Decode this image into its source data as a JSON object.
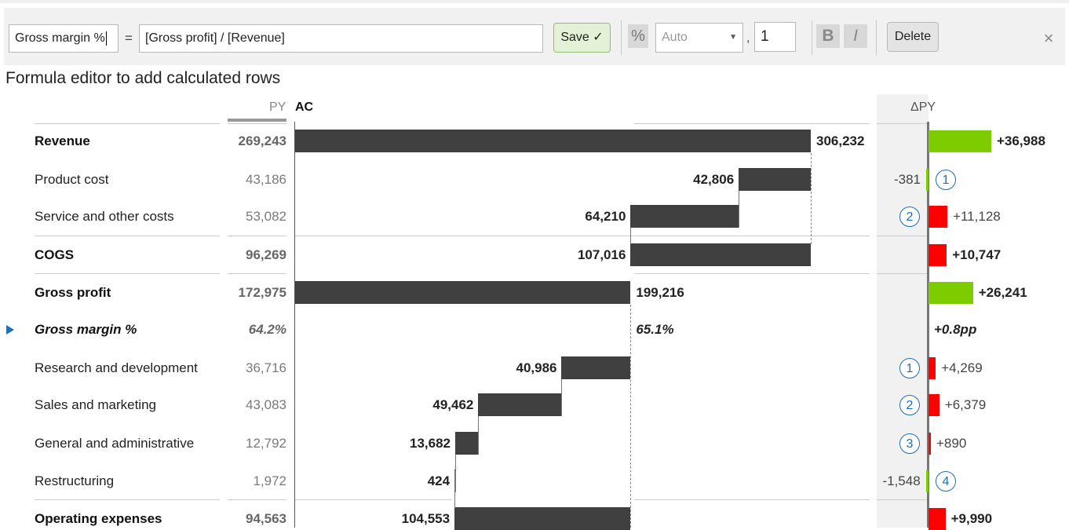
{
  "toolbar": {
    "name_value": "Gross margin %",
    "equals": "=",
    "formula_value": "[Gross profit] / [Revenue]",
    "save_label": "Save ✓",
    "percent_label": "%",
    "format_value": "Auto",
    "comma": ",",
    "decimals_value": "1",
    "bold_label": "B",
    "italic_label": "I",
    "delete_label": "Delete",
    "close_label": "×"
  },
  "title": "Formula editor to add calculated rows",
  "columns": {
    "py": "PY",
    "ac": "AC",
    "dpy": "ΔPY"
  },
  "rows": [
    {
      "label": "Revenue",
      "py": "269,243",
      "ac": "306,232",
      "dpy": "+36,988",
      "badge": ""
    },
    {
      "label": "Product cost",
      "py": "43,186",
      "ac": "42,806",
      "dpy": "-381",
      "badge": "1"
    },
    {
      "label": "Service and other costs",
      "py": "53,082",
      "ac": "64,210",
      "dpy": "+11,128",
      "badge": "2"
    },
    {
      "label": "COGS",
      "py": "96,269",
      "ac": "107,016",
      "dpy": "+10,747",
      "badge": ""
    },
    {
      "label": "Gross profit",
      "py": "172,975",
      "ac": "199,216",
      "dpy": "+26,241",
      "badge": ""
    },
    {
      "label": "Gross margin %",
      "py": "64.2%",
      "ac": "65.1%",
      "dpy": "+0.8pp",
      "badge": ""
    },
    {
      "label": "Research and development",
      "py": "36,716",
      "ac": "40,986",
      "dpy": "+4,269",
      "badge": "1"
    },
    {
      "label": "Sales and marketing",
      "py": "43,083",
      "ac": "49,462",
      "dpy": "+6,379",
      "badge": "2"
    },
    {
      "label": "General and administrative",
      "py": "12,792",
      "ac": "13,682",
      "dpy": "+890",
      "badge": "3"
    },
    {
      "label": "Restructuring",
      "py": "1,972",
      "ac": "424",
      "dpy": "-1,548",
      "badge": "4"
    },
    {
      "label": "Operating expenses",
      "py": "94,563",
      "ac": "104,553",
      "dpy": "+9,990",
      "badge": ""
    }
  ],
  "colors": {
    "bar": "#404040",
    "positive": "#7dcc00",
    "negative": "#ff0000",
    "badge": "#1c6fb8",
    "selection": "#1c6fb8"
  }
}
